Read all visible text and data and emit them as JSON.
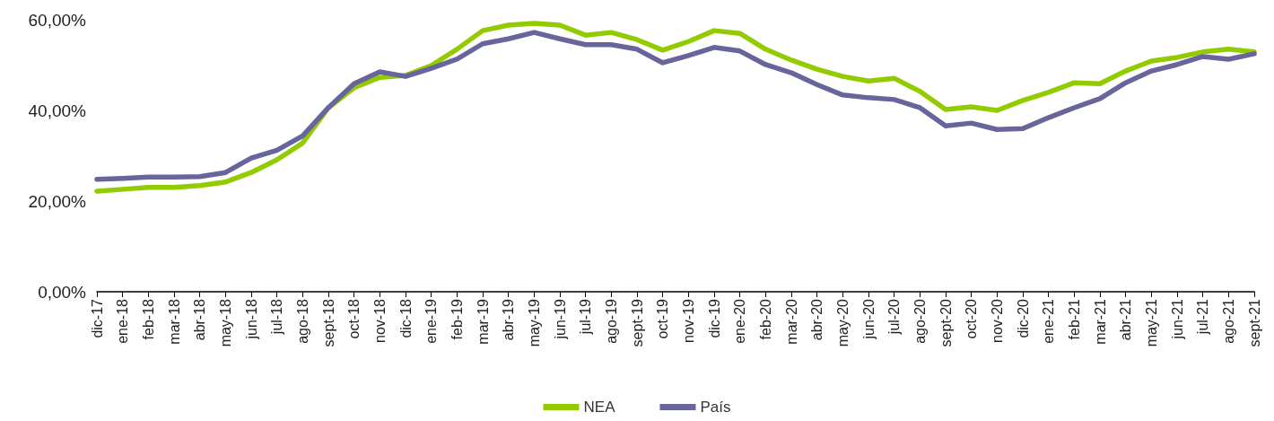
{
  "chart_data": {
    "type": "line",
    "categories": [
      "dic-17",
      "ene-18",
      "feb-18",
      "mar-18",
      "abr-18",
      "may-18",
      "jun-18",
      "jul-18",
      "ago-18",
      "sept-18",
      "oct-18",
      "nov-18",
      "dic-18",
      "ene-19",
      "feb-19",
      "mar-19",
      "abr-19",
      "may-19",
      "jun-19",
      "jul-19",
      "ago-19",
      "sept-19",
      "oct-19",
      "nov-19",
      "dic-19",
      "ene-20",
      "feb-20",
      "mar-20",
      "abr-20",
      "may-20",
      "jun-20",
      "jul-20",
      "ago-20",
      "sept-20",
      "oct-20",
      "nov-20",
      "dic-20",
      "ene-21",
      "feb-21",
      "mar-21",
      "abr-21",
      "may-21",
      "jun-21",
      "jul-21",
      "ago-21",
      "sept-21"
    ],
    "series": [
      {
        "name": "NEA",
        "color": "#92cc00",
        "values": [
          22.2,
          22.6,
          23.0,
          23.0,
          23.4,
          24.2,
          26.3,
          29.1,
          32.8,
          40.6,
          45.0,
          47.3,
          47.7,
          49.9,
          53.5,
          57.6,
          58.8,
          59.2,
          58.8,
          56.6,
          57.2,
          55.6,
          53.3,
          55.2,
          57.6,
          57.0,
          53.5,
          51.1,
          49.1,
          47.5,
          46.5,
          47.1,
          44.2,
          40.2,
          40.8,
          40.0,
          42.2,
          44.0,
          46.1,
          45.9,
          48.7,
          50.9,
          51.7,
          52.9,
          53.5,
          52.9
        ]
      },
      {
        "name": "País",
        "color": "#67659b",
        "values": [
          24.8,
          25.0,
          25.3,
          25.3,
          25.4,
          26.3,
          29.5,
          31.2,
          34.4,
          40.6,
          45.9,
          48.5,
          47.5,
          49.3,
          51.3,
          54.7,
          55.8,
          57.2,
          55.8,
          54.5,
          54.5,
          53.5,
          50.5,
          52.1,
          53.9,
          53.1,
          50.1,
          48.3,
          45.7,
          43.4,
          42.8,
          42.4,
          40.6,
          36.6,
          37.2,
          35.8,
          36.0,
          38.4,
          40.6,
          42.6,
          46.1,
          48.7,
          50.1,
          51.9,
          51.3,
          52.5
        ]
      }
    ],
    "ylim": [
      0,
      60
    ],
    "yticks": [
      {
        "value": 0,
        "label": "0,00%"
      },
      {
        "value": 20,
        "label": "20,00%"
      },
      {
        "value": 40,
        "label": "40,00%"
      },
      {
        "value": 60,
        "label": "60,00%"
      }
    ],
    "grid": false,
    "legend": "bottom",
    "marker": "none",
    "line_style": "solid"
  }
}
